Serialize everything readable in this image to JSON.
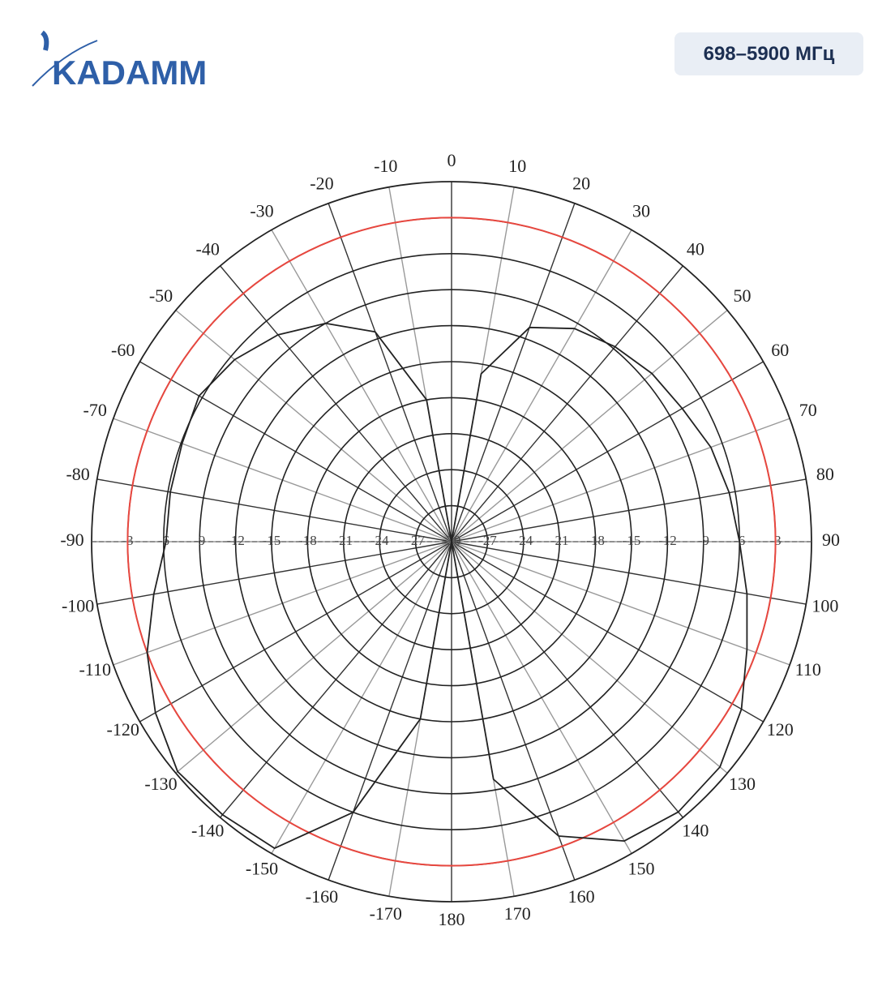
{
  "header": {
    "logo": "KADAMM",
    "badge": "698–5900 МГц"
  },
  "chart_data": {
    "type": "polar",
    "theta": [
      -180,
      -170,
      -160,
      -150,
      -140,
      -130,
      -120,
      -110,
      -100,
      -90,
      -80,
      -70,
      -60,
      -50,
      -40,
      -30,
      -20,
      -10,
      0,
      10,
      20,
      30,
      40,
      50,
      60,
      70,
      80,
      90,
      100,
      110,
      120,
      130,
      140,
      150,
      160,
      170,
      180
    ],
    "values": [
      -30,
      -15,
      -6,
      -0.5,
      -0.3,
      -0.2,
      -1.5,
      -3,
      -4.8,
      -6.2,
      -6.2,
      -6.1,
      -5.7,
      -6.4,
      -7.5,
      -9,
      -11.4,
      -18,
      -30,
      -15.8,
      -11,
      -9.5,
      -8.8,
      -8.2,
      -7.8,
      -7,
      -6.5,
      -6,
      -5,
      -3.8,
      -2.1,
      -0.8,
      -0.6,
      -1.2,
      -3.9,
      -9.9,
      -30
    ],
    "color": "#222222",
    "reference_circle": {
      "value": -3,
      "color": "#e8473f"
    },
    "rlim": [
      -30,
      0
    ],
    "rticks": [
      -30,
      -27,
      -24,
      -21,
      -18,
      -15,
      -12,
      -9,
      -6,
      -3
    ],
    "thetaticks": [
      0,
      10,
      20,
      30,
      40,
      50,
      60,
      70,
      80,
      90,
      100,
      110,
      120,
      130,
      140,
      150,
      160,
      170,
      180,
      -170,
      -160,
      -150,
      -140,
      -130,
      -120,
      -110,
      -100,
      -90,
      -80,
      -70,
      -60,
      -50,
      -40,
      -30,
      -20,
      -10
    ],
    "grid": true
  }
}
